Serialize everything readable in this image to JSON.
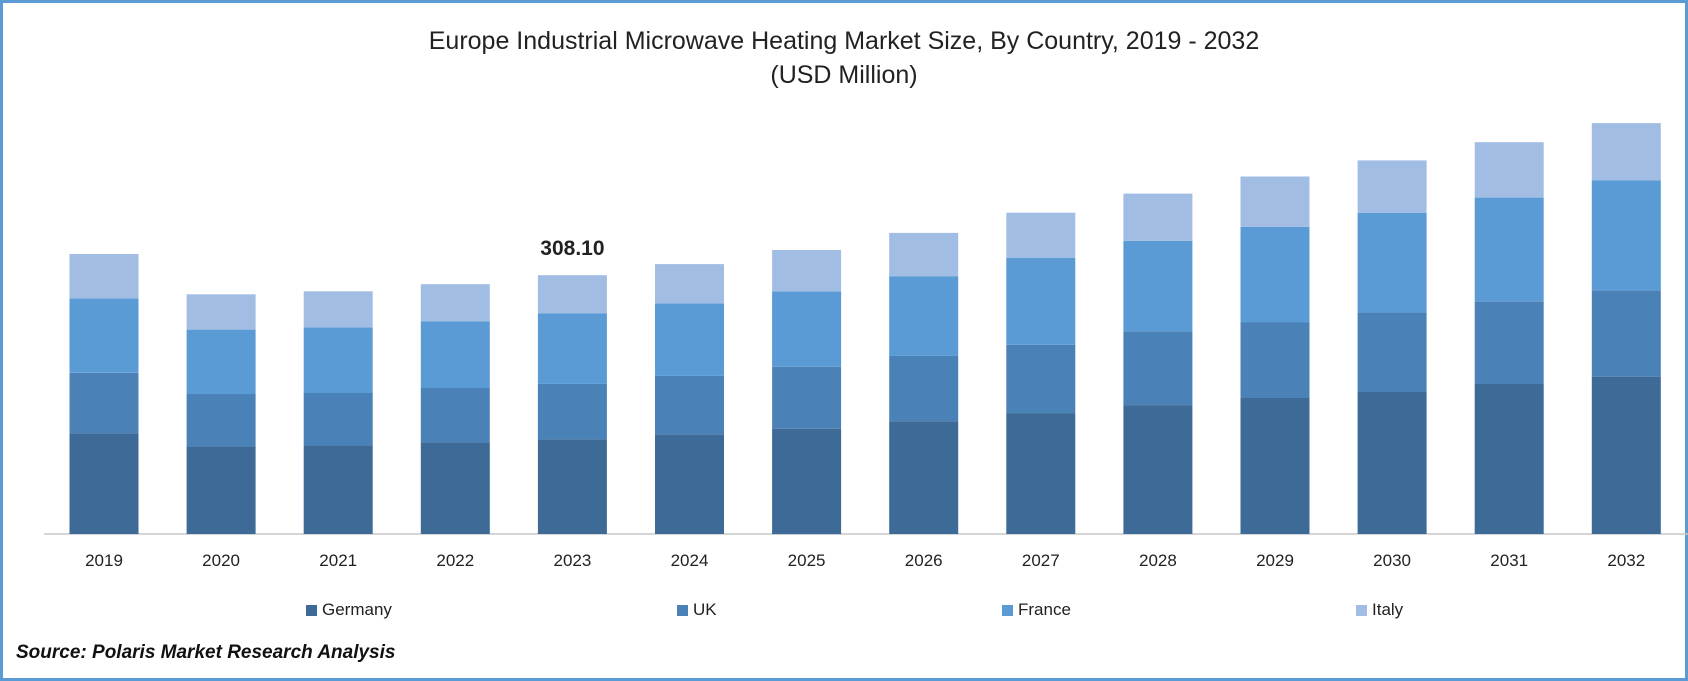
{
  "chart_data": {
    "type": "bar",
    "stacked": true,
    "title": "Europe Industrial Microwave Heating Market Size, By Country, 2019 - 2032",
    "subtitle": "(USD Million)",
    "categories": [
      "2019",
      "2020",
      "2021",
      "2022",
      "2023",
      "2024",
      "2025",
      "2026",
      "2027",
      "2028",
      "2029",
      "2030",
      "2031",
      "2032"
    ],
    "series": [
      {
        "name": "Germany",
        "color": "#3d6a96",
        "values": [
          100,
          87,
          88,
          91,
          94,
          99,
          105,
          112,
          120,
          128,
          135,
          141,
          149,
          156
        ]
      },
      {
        "name": "UK",
        "color": "#4a81b6",
        "values": [
          60,
          52,
          52,
          54,
          55,
          58,
          61,
          65,
          68,
          73,
          75,
          79,
          82,
          86
        ]
      },
      {
        "name": "France",
        "color": "#5b9bd5",
        "values": [
          74,
          64,
          65,
          66,
          70,
          72,
          75,
          79,
          86,
          90,
          95,
          99,
          103,
          109
        ]
      },
      {
        "name": "Italy",
        "color": "#a2bde3",
        "values": [
          44,
          35,
          36,
          37,
          38,
          39,
          41,
          43,
          45,
          47,
          50,
          52,
          55,
          57
        ]
      }
    ],
    "annotations": [
      {
        "category": "2023",
        "label": "308.10"
      }
    ],
    "ylim": [
      0,
      420
    ],
    "xlabel": "",
    "ylabel": "",
    "legend_position": "bottom"
  },
  "source": "Source: Polaris Market Research Analysis"
}
